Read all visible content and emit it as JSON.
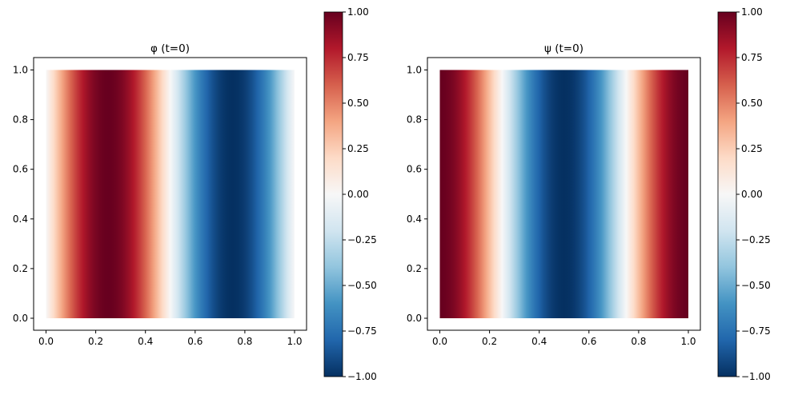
{
  "chart_data": [
    {
      "type": "heatmap",
      "title": "φ (t=0)",
      "xlabel": "",
      "ylabel": "",
      "xlim": [
        0,
        1
      ],
      "ylim": [
        0,
        1
      ],
      "xticks": [
        "0.0",
        "0.2",
        "0.4",
        "0.6",
        "0.8",
        "1.0"
      ],
      "yticks": [
        "0.0",
        "0.2",
        "0.4",
        "0.6",
        "0.8",
        "1.0"
      ],
      "x": [
        0,
        0.05,
        0.1,
        0.15,
        0.2,
        0.25,
        0.3,
        0.35,
        0.4,
        0.45,
        0.5,
        0.55,
        0.6,
        0.65,
        0.7,
        0.75,
        0.8,
        0.85,
        0.9,
        0.95,
        1
      ],
      "values": [
        0,
        0.309,
        0.588,
        0.809,
        0.951,
        1,
        0.951,
        0.809,
        0.588,
        0.309,
        0,
        -0.309,
        -0.588,
        -0.809,
        -0.951,
        -1,
        -0.951,
        -0.809,
        -0.588,
        -0.309,
        0
      ],
      "note_values_constant_along_y": true,
      "colormap": "RdBu_r",
      "colorbar": {
        "range": [
          -1,
          1
        ],
        "ticks": [
          "1.00",
          "0.75",
          "0.50",
          "0.25",
          "0.00",
          "−0.25",
          "−0.50",
          "−0.75",
          "−1.00"
        ]
      }
    },
    {
      "type": "heatmap",
      "title": "ψ (t=0)",
      "xlabel": "",
      "ylabel": "",
      "xlim": [
        0,
        1
      ],
      "ylim": [
        0,
        1
      ],
      "xticks": [
        "0.0",
        "0.2",
        "0.4",
        "0.6",
        "0.8",
        "1.0"
      ],
      "yticks": [
        "0.0",
        "0.2",
        "0.4",
        "0.6",
        "0.8",
        "1.0"
      ],
      "x": [
        0,
        0.05,
        0.1,
        0.15,
        0.2,
        0.25,
        0.3,
        0.35,
        0.4,
        0.45,
        0.5,
        0.55,
        0.6,
        0.65,
        0.7,
        0.75,
        0.8,
        0.85,
        0.9,
        0.95,
        1
      ],
      "values": [
        1,
        0.951,
        0.809,
        0.588,
        0.309,
        0,
        -0.309,
        -0.588,
        -0.809,
        -0.951,
        -1,
        -0.951,
        -0.809,
        -0.588,
        -0.309,
        0,
        0.309,
        0.588,
        0.809,
        0.951,
        1
      ],
      "note_values_constant_along_y": true,
      "colormap": "RdBu_r",
      "colorbar": {
        "range": [
          -1,
          1
        ],
        "ticks": [
          "1.00",
          "0.75",
          "0.50",
          "0.25",
          "0.00",
          "−0.25",
          "−0.50",
          "−0.75",
          "−1.00"
        ]
      }
    }
  ],
  "colors": {
    "cmap_stops": [
      "#053061",
      "#2166ac",
      "#4393c3",
      "#92c5de",
      "#d1e5f0",
      "#f7f7f7",
      "#fddbc7",
      "#f4a582",
      "#d6604d",
      "#b2182b",
      "#67001f"
    ]
  }
}
